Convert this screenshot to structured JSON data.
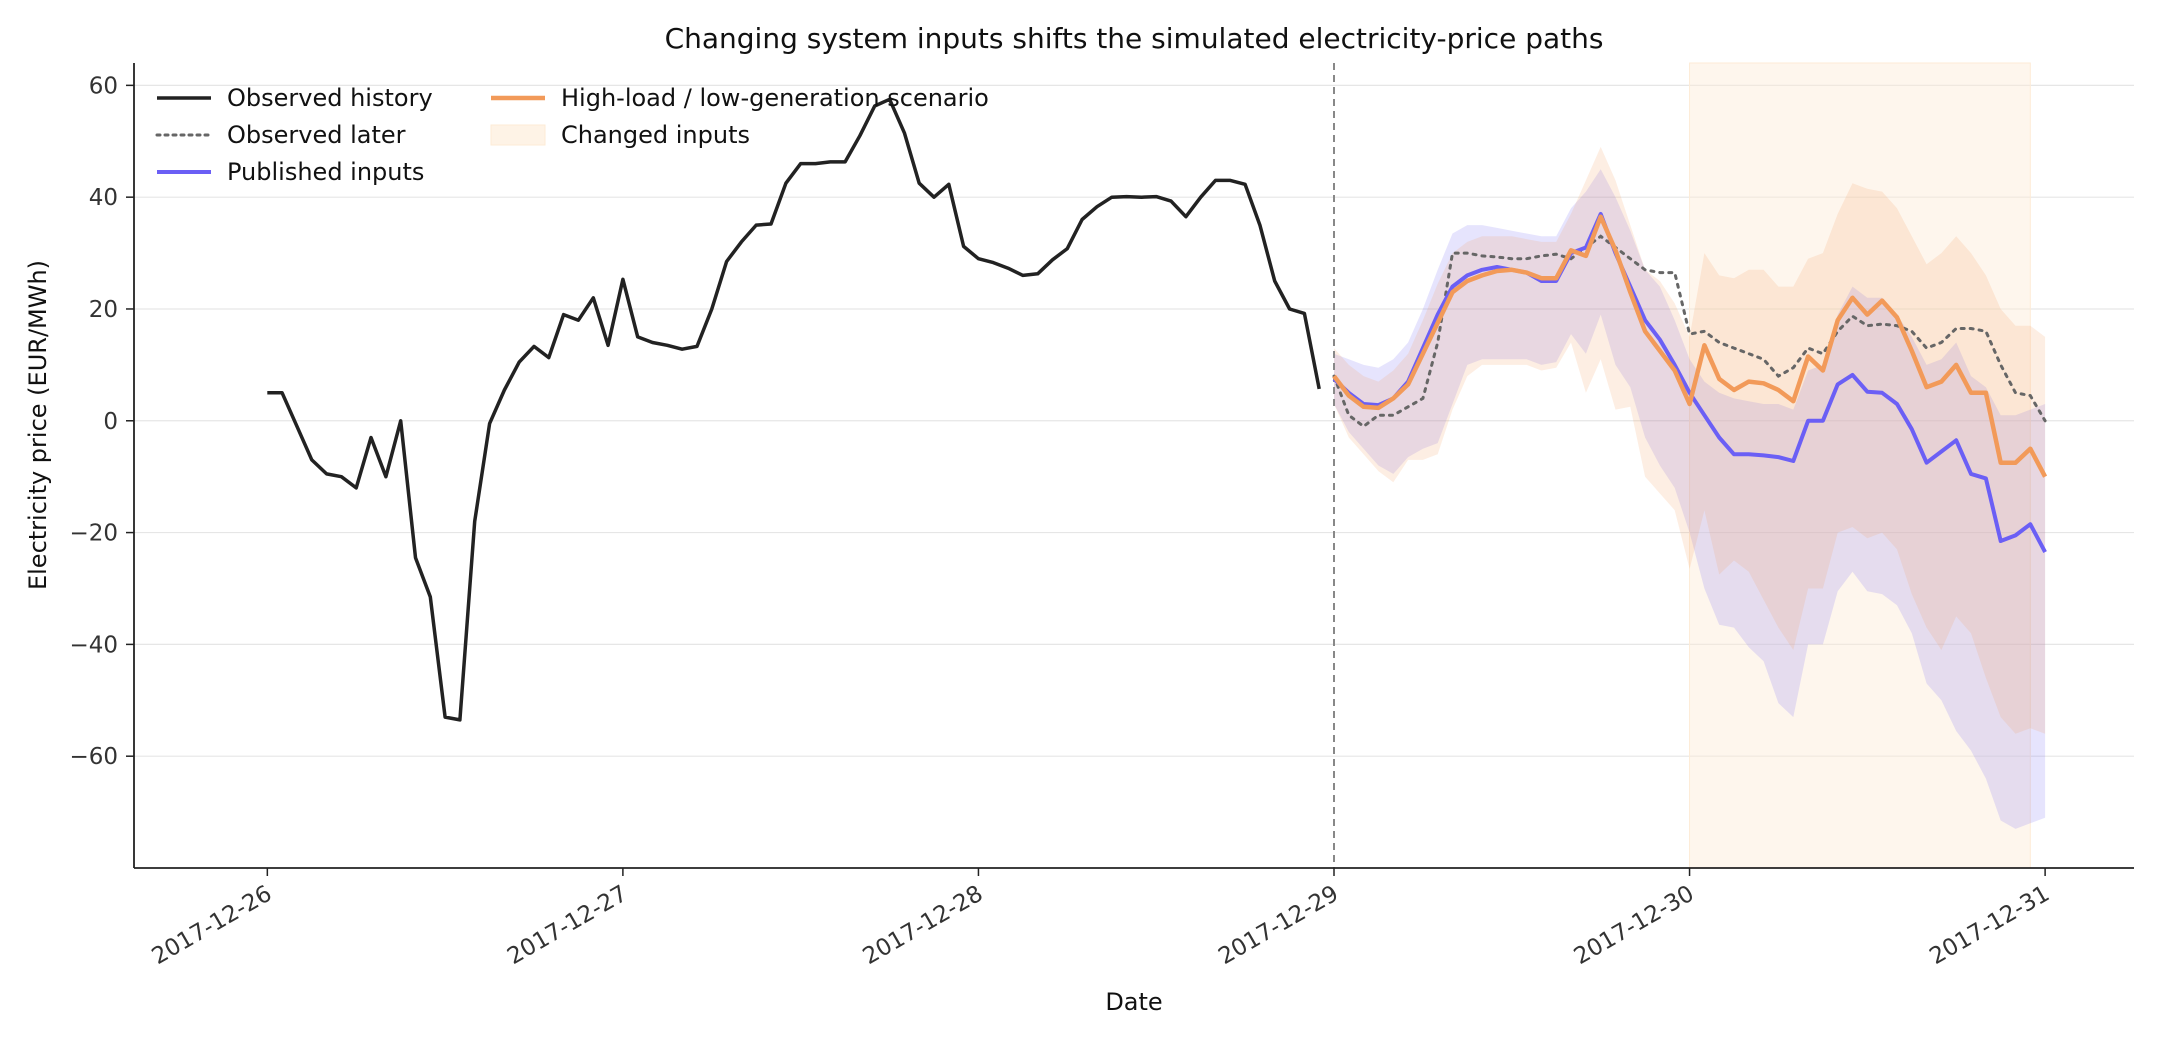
{
  "chart_data": {
    "type": "line",
    "title": "Changing system inputs shifts the simulated electricity-price paths",
    "xlabel": "Date",
    "ylabel": "Electricity price (EUR/MWh)",
    "xlim": [
      "2017-12-25 15:00",
      "2017-12-31 06:00"
    ],
    "ylim": [
      -80,
      64
    ],
    "x_ticks": [
      "2017-12-26",
      "2017-12-27",
      "2017-12-28",
      "2017-12-29",
      "2017-12-30",
      "2017-12-31"
    ],
    "y_ticks": [
      60,
      40,
      20,
      0,
      -20,
      -40,
      -60
    ],
    "y_tick_labels": [
      "60",
      "40",
      "20",
      "0",
      "−20",
      "−40",
      "−60"
    ],
    "grid": "horizontal",
    "legend": "top-left",
    "forecast_start": "2017-12-29 00:00",
    "changed_inputs_window": [
      "2017-12-30 00:00",
      "2017-12-30 23:00"
    ],
    "legend_entries": [
      "Observed history",
      "Observed later",
      "Published inputs",
      "High-load / low-generation scenario",
      "Changed inputs"
    ],
    "colors": {
      "observed_history": "#222222",
      "observed_later": "#666666",
      "published": "#6b5ff5",
      "scenario": "#f29a59",
      "changed_inputs": "#fdebd6",
      "forecast_line": "#888888",
      "grid": "#e6e6e6"
    },
    "history": {
      "name": "Observed history",
      "start": "2017-12-26 00:00",
      "step_hours": 1,
      "values": [
        5,
        5,
        -1,
        -7,
        -9.5,
        -10,
        -12,
        -3,
        -10,
        0,
        -24.5,
        -31.5,
        -53,
        -53.5,
        -18,
        -0.5,
        5.5,
        10.5,
        13.3,
        11.3,
        19,
        18,
        22,
        13.5,
        25.3,
        15,
        14,
        13.5,
        12.8,
        13.3,
        20,
        28.5,
        32,
        35,
        35.2,
        42.5,
        46,
        46,
        46.3,
        46.3,
        51,
        56.3,
        57.5,
        51.5,
        42.5,
        40,
        42.3,
        31.2,
        29,
        28.3,
        27.3,
        26,
        26.3,
        28.8,
        30.8,
        36,
        38.3,
        40,
        40.1,
        40,
        40.1,
        39.3,
        36.5,
        40,
        43,
        43,
        42.3,
        35,
        25,
        20,
        19.2,
        5.7
      ]
    },
    "observed_later": {
      "name": "Observed later",
      "start": "2017-12-29 00:00",
      "step_hours": 1,
      "values": [
        8,
        1,
        -1,
        1,
        1,
        2.5,
        4,
        14,
        30,
        30,
        29.5,
        29.3,
        29,
        29,
        29.5,
        29.8,
        29,
        31,
        33,
        31,
        29,
        27,
        26.5,
        26.5,
        15.5,
        16,
        14,
        13,
        12,
        11,
        8,
        9.5,
        13,
        12,
        16,
        18.7,
        17,
        17.3,
        17,
        16,
        13,
        14,
        16.5,
        16.5,
        16,
        10,
        5,
        4.5,
        0
      ]
    },
    "published": {
      "name": "Published inputs",
      "start": "2017-12-29 00:00",
      "step_hours": 1,
      "values": [
        7.5,
        5,
        3,
        2.8,
        4,
        7,
        13,
        19,
        24,
        26,
        27,
        27.5,
        27,
        26.5,
        25,
        25,
        30,
        31,
        37,
        30,
        24,
        18,
        14.5,
        10,
        5,
        1,
        -3,
        -6,
        -6,
        -6.2,
        -6.5,
        -7.2,
        0,
        0,
        6.5,
        8.2,
        5.2,
        5,
        3,
        -1.5,
        -7.5,
        -5.5,
        -3.5,
        -9.5,
        -10.3,
        -21.5,
        -20.5,
        -18.5,
        -23.5
      ]
    },
    "published_band": {
      "upper": [
        12,
        11,
        10,
        9.5,
        11,
        14,
        20,
        27,
        33.5,
        35,
        35,
        34.5,
        34,
        33.5,
        33,
        33,
        38,
        41,
        45,
        40,
        34,
        27,
        24,
        18,
        11,
        7,
        5,
        4,
        3.5,
        3,
        3,
        2,
        9,
        10,
        19,
        24,
        22,
        22,
        19,
        15,
        10,
        11,
        14,
        8,
        6,
        1,
        1,
        2,
        3
      ],
      "lower": [
        3,
        -2,
        -5,
        -8,
        -9.5,
        -6.5,
        -5,
        -4,
        3,
        10,
        11,
        11,
        11,
        11,
        10,
        10.5,
        15.5,
        12,
        19,
        10,
        6,
        -3,
        -8,
        -12,
        -20,
        -30,
        -36.5,
        -37,
        -40.5,
        -43,
        -50.5,
        -53,
        -40,
        -40,
        -30.5,
        -27,
        -30.5,
        -31,
        -33,
        -38,
        -47,
        -50,
        -55.5,
        -59,
        -64,
        -71.5,
        -73,
        -72,
        -71
      ]
    },
    "scenario": {
      "name": "High-load / low-generation scenario",
      "start": "2017-12-29 00:00",
      "step_hours": 1,
      "values": [
        8,
        4.5,
        2.5,
        2.3,
        4,
        6.5,
        12,
        17.5,
        23,
        25,
        26,
        26.8,
        27,
        26.5,
        25.5,
        25.5,
        30.5,
        29.5,
        36.5,
        30.5,
        23,
        16,
        12.5,
        9,
        3,
        13.5,
        7.5,
        5.5,
        7,
        6.7,
        5.5,
        3.5,
        11.5,
        9,
        18,
        22,
        19,
        21.5,
        18.5,
        12.5,
        6,
        7,
        10,
        5,
        5,
        -7.5,
        -7.5,
        -5,
        -10
      ]
    },
    "scenario_band": {
      "upper": [
        13,
        10,
        8,
        7,
        9,
        12,
        18,
        24.5,
        30,
        32,
        33,
        33,
        33,
        32.5,
        32,
        32,
        37,
        43,
        49,
        43,
        35,
        27,
        25,
        21,
        15,
        30,
        26,
        25.5,
        27,
        27,
        24,
        24,
        29,
        30,
        37,
        42.5,
        41.5,
        41,
        38,
        33,
        28,
        30,
        33,
        30,
        26,
        20,
        17,
        17,
        15
      ],
      "lower": [
        3,
        -3,
        -6,
        -9,
        -11,
        -7,
        -7,
        -6,
        2,
        8,
        10,
        10,
        10,
        10,
        9,
        9.5,
        14,
        5,
        11,
        2,
        2.5,
        -10,
        -13,
        -16,
        -26.5,
        -16,
        -27.5,
        -25,
        -27,
        -32,
        -37,
        -41,
        -30,
        -30,
        -20,
        -19,
        -21,
        -20,
        -23,
        -31,
        -37,
        -41,
        -35,
        -38,
        -46,
        -53,
        -56,
        -55,
        -56
      ]
    }
  }
}
